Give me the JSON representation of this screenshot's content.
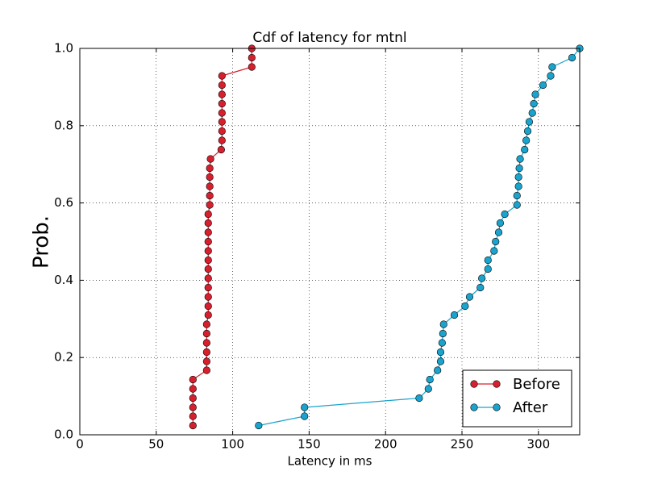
{
  "chart_data": {
    "type": "line",
    "title": "Cdf of latency for mtnl",
    "x_label": "Latency in ms",
    "y_label": "Prob.",
    "xlim": [
      0,
      327
    ],
    "ylim": [
      0,
      1.0
    ],
    "xticks": [
      0,
      50,
      100,
      150,
      200,
      250,
      300
    ],
    "yticks": [
      {
        "value": 0,
        "label": "0.0"
      },
      {
        "value": 0.2,
        "label": "0.2"
      },
      {
        "value": 0.4,
        "label": "0.4"
      },
      {
        "value": 0.6,
        "label": "0.6"
      },
      {
        "value": 0.8,
        "label": "0.8"
      },
      {
        "value": 1.0,
        "label": "1.0"
      }
    ],
    "grid": true,
    "legend": "lower right",
    "series": [
      {
        "name": "Before",
        "color": "#d7202e",
        "x": [
          74,
          74,
          74,
          74,
          74,
          74,
          83,
          83,
          83,
          83,
          83,
          83,
          84,
          84,
          84,
          84,
          84,
          84,
          84,
          84,
          84,
          84,
          84,
          84,
          85,
          85,
          85,
          85,
          85,
          85.5,
          92.5,
          93,
          93,
          93,
          93,
          93,
          93,
          93,
          93,
          112.5,
          112.5,
          112.5
        ],
        "values": [
          0.024,
          0.048,
          0.071,
          0.095,
          0.119,
          0.143,
          0.167,
          0.19,
          0.214,
          0.238,
          0.262,
          0.286,
          0.31,
          0.333,
          0.357,
          0.381,
          0.405,
          0.429,
          0.452,
          0.476,
          0.5,
          0.524,
          0.548,
          0.571,
          0.595,
          0.619,
          0.643,
          0.667,
          0.69,
          0.714,
          0.738,
          0.762,
          0.786,
          0.81,
          0.833,
          0.857,
          0.881,
          0.905,
          0.929,
          0.952,
          0.976,
          1.0
        ]
      },
      {
        "name": "After",
        "color": "#1aa3cc",
        "x": [
          117,
          147,
          147,
          222,
          228,
          229,
          234,
          236,
          236,
          237,
          237.5,
          238,
          245,
          252,
          255,
          262,
          263,
          267,
          267,
          271,
          272,
          274,
          275,
          278,
          286,
          286,
          287,
          287,
          287.5,
          288,
          291,
          292,
          293,
          294,
          296,
          297,
          298,
          303,
          308,
          309,
          322,
          327
        ],
        "values": [
          0.024,
          0.048,
          0.071,
          0.095,
          0.119,
          0.143,
          0.167,
          0.19,
          0.214,
          0.238,
          0.262,
          0.286,
          0.31,
          0.333,
          0.357,
          0.381,
          0.405,
          0.429,
          0.452,
          0.476,
          0.5,
          0.524,
          0.548,
          0.571,
          0.595,
          0.619,
          0.643,
          0.667,
          0.69,
          0.714,
          0.738,
          0.762,
          0.786,
          0.81,
          0.833,
          0.857,
          0.881,
          0.905,
          0.929,
          0.952,
          0.976,
          1.0
        ]
      }
    ]
  }
}
